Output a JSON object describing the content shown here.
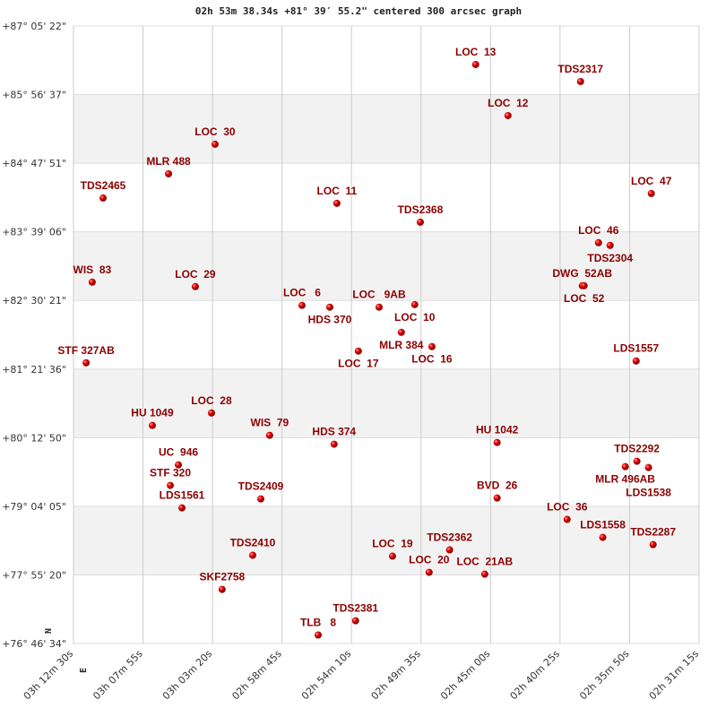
{
  "title": "02h 53m 38.34s +81° 39′ 55.2\" centered 300 arcsec graph",
  "chart_data": {
    "type": "scatter",
    "title": "02h 53m 38.34s +81° 39′ 55.2\" centered 300 arcsec graph",
    "x_ticks": [
      "03h 12m 30s",
      "03h 07m 55s",
      "03h 03m 20s",
      "02h 58m 45s",
      "02h 54m 10s",
      "02h 49m 35s",
      "02h 45m 00s",
      "02h 40m 25s",
      "02h 35m 50s",
      "02h 31m 15s"
    ],
    "y_ticks": [
      "+87° 05' 22\"",
      "+85° 56' 37\"",
      "+84° 47' 51\"",
      "+83° 39' 06\"",
      "+82° 30' 21\"",
      "+81° 21' 36\"",
      "+80° 12' 50\"",
      "+79° 04' 05\"",
      "+77° 55' 20\"",
      "+76° 46' 34\""
    ],
    "xlim": [
      "03h12m30s",
      "02h31m15s"
    ],
    "ylim": [
      "+76°46'34\"",
      "+87°05'22\""
    ],
    "x_reversed": true,
    "grid": true,
    "alternating_bands": true,
    "compass": {
      "north": "N",
      "east": "E"
    },
    "point_color": "#e00000",
    "label_color": "#8b0000",
    "points": [
      {
        "name": "LOC  13",
        "ra": "02h45m59s",
        "dec": "+86°26'48\""
      },
      {
        "name": "TDS2317",
        "ra": "02h39m04s",
        "dec": "+86°09'42\""
      },
      {
        "name": "LOC  12",
        "ra": "02h43m51s",
        "dec": "+85°35'36\""
      },
      {
        "name": "LOC  30",
        "ra": "03h03m10s",
        "dec": "+85°06'54\""
      },
      {
        "name": "MLR 488",
        "ra": "03h06m14s",
        "dec": "+84°37'18\""
      },
      {
        "name": "TDS2465",
        "ra": "03h10m33s",
        "dec": "+84°13'00\""
      },
      {
        "name": "LOC  11",
        "ra": "02h55m08s",
        "dec": "+84°07'42\""
      },
      {
        "name": "LOC  47",
        "ra": "02h34m24s",
        "dec": "+84°17'30\""
      },
      {
        "name": "TDS2368",
        "ra": "02h49m38s",
        "dec": "+83°48'48\""
      },
      {
        "name": "LOC  46",
        "ra": "02h37m53s",
        "dec": "+83°28'12\""
      },
      {
        "name": "TDS2304",
        "ra": "02h37m07s",
        "dec": "+83°25'30\""
      },
      {
        "name": "DWG  52AB",
        "ra": "02h38m57s",
        "dec": "+82°45'06\""
      },
      {
        "name": "LOC  52",
        "ra": "02h38m50s",
        "dec": "+82°45'06\""
      },
      {
        "name": "WIS  83",
        "ra": "03h11m16s",
        "dec": "+82°48'42\""
      },
      {
        "name": "LOC  29",
        "ra": "03h04m28s",
        "dec": "+82°44'12\""
      },
      {
        "name": "LOC   6",
        "ra": "02h57m26s",
        "dec": "+82°25'24\""
      },
      {
        "name": "HDS 370",
        "ra": "02h55m36s",
        "dec": "+82°23'36\""
      },
      {
        "name": "LOC   9AB",
        "ra": "02h52m21s",
        "dec": "+82°23'36\""
      },
      {
        "name": "LOC  10",
        "ra": "02h50m00s",
        "dec": "+82°26'12\""
      },
      {
        "name": "MLR 384",
        "ra": "02h50m53s",
        "dec": "+81°58'24\""
      },
      {
        "name": "LOC  16",
        "ra": "02h48m52s",
        "dec": "+81°44'06\""
      },
      {
        "name": "LOC  17",
        "ra": "02h53m43s",
        "dec": "+81°39'36\""
      },
      {
        "name": "LDS1557",
        "ra": "02h35m24s",
        "dec": "+81°29'42\""
      },
      {
        "name": "STF 327AB",
        "ra": "03h11m40s",
        "dec": "+81°27'54\""
      },
      {
        "name": "LOC  28",
        "ra": "03h03m24s",
        "dec": "+80°37'36\""
      },
      {
        "name": "HU 1049",
        "ra": "03h07m18s",
        "dec": "+80°25'06\""
      },
      {
        "name": "WIS  79",
        "ra": "02h59m34s",
        "dec": "+80°15'12\""
      },
      {
        "name": "HDS 374",
        "ra": "02h55m19s",
        "dec": "+80°06'18\""
      },
      {
        "name": "HU 1042",
        "ra": "02h44m34s",
        "dec": "+80°08'00\""
      },
      {
        "name": "UC  946",
        "ra": "03h05m35s",
        "dec": "+79°45'36\""
      },
      {
        "name": "STF 320",
        "ra": "03h06m07s",
        "dec": "+79°25'00\""
      },
      {
        "name": "LDS1561",
        "ra": "03h05m21s",
        "dec": "+79°02'30\""
      },
      {
        "name": "TDS2409",
        "ra": "03h00m09s",
        "dec": "+79°11'30\""
      },
      {
        "name": "BVD  26",
        "ra": "02h44m34s",
        "dec": "+79°12'24\""
      },
      {
        "name": "TDS2292",
        "ra": "02h35m21s",
        "dec": "+79°49'12\""
      },
      {
        "name": "MLR 496AB",
        "ra": "02h36m07s",
        "dec": "+79°43'48\""
      },
      {
        "name": "LDS1538",
        "ra": "02h34m35s",
        "dec": "+79°42'54\""
      },
      {
        "name": "LOC  36",
        "ra": "02h39m57s",
        "dec": "+78°50'54\""
      },
      {
        "name": "LDS1558",
        "ra": "02h37m36s",
        "dec": "+78°32'54\""
      },
      {
        "name": "TDS2287",
        "ra": "02h34m17s",
        "dec": "+78°25'42\""
      },
      {
        "name": "TDS2410",
        "ra": "03h00m41s",
        "dec": "+78°15'00\""
      },
      {
        "name": "LOC  19",
        "ra": "02h51m28s",
        "dec": "+78°14'06\""
      },
      {
        "name": "TDS2362",
        "ra": "02h47m42s",
        "dec": "+78°20'24\""
      },
      {
        "name": "LOC  20",
        "ra": "02h49m03s",
        "dec": "+77°57'54\""
      },
      {
        "name": "LOC  21AB",
        "ra": "02h45m23s",
        "dec": "+77°56'06\""
      },
      {
        "name": "SKF2758",
        "ra": "03h02m42s",
        "dec": "+77°40'48\""
      },
      {
        "name": "TDS2381",
        "ra": "02h53m54s",
        "dec": "+77°09'24\""
      },
      {
        "name": "TLB   8",
        "ra": "02h56m22s",
        "dec": "+76°55'06\""
      }
    ]
  }
}
